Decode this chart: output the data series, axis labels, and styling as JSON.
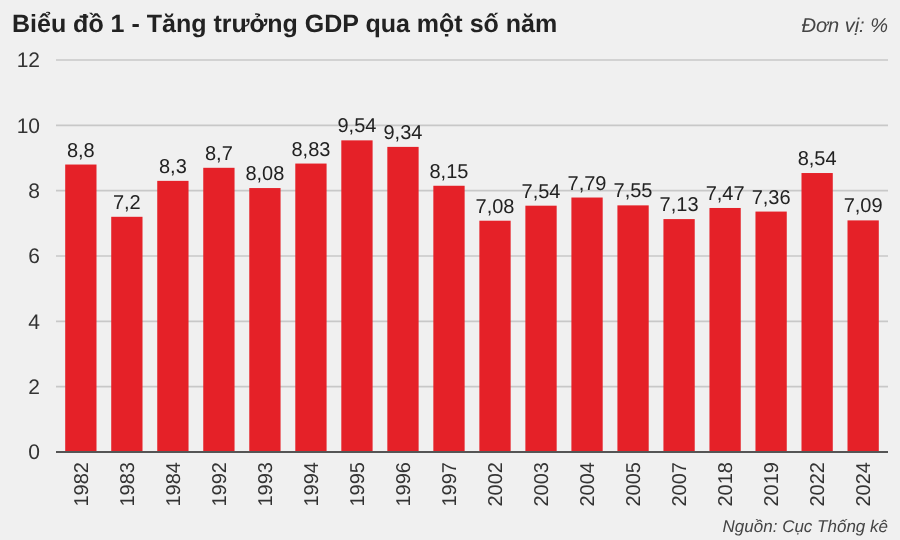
{
  "chart_data": {
    "type": "bar",
    "title": "Biểu đồ 1 - Tăng trưởng GDP qua một số năm",
    "subtitle": "Đơn vị: %",
    "categories": [
      "1982",
      "1983",
      "1984",
      "1992",
      "1993",
      "1994",
      "1995",
      "1996",
      "1997",
      "2002",
      "2003",
      "2004",
      "2005",
      "2007",
      "2018",
      "2019",
      "2022",
      "2024"
    ],
    "values": [
      8.8,
      7.2,
      8.3,
      8.7,
      8.08,
      8.83,
      9.54,
      9.34,
      8.15,
      7.08,
      7.54,
      7.79,
      7.55,
      7.13,
      7.47,
      7.36,
      8.54,
      7.09
    ],
    "value_labels": [
      "8,8",
      "7,2",
      "8,3",
      "8,7",
      "8,08",
      "8,83",
      "9,54",
      "9,34",
      "8,15",
      "7,08",
      "7,54",
      "7,79",
      "7,55",
      "7,13",
      "7,47",
      "7,36",
      "8,54",
      "7,09"
    ],
    "color": "#e52128",
    "ylim": [
      0,
      12
    ],
    "yticks": [
      0,
      2,
      4,
      6,
      8,
      10,
      12
    ],
    "grid": "y",
    "annotations": [
      "Nguồn: Cục Thống kê"
    ]
  }
}
